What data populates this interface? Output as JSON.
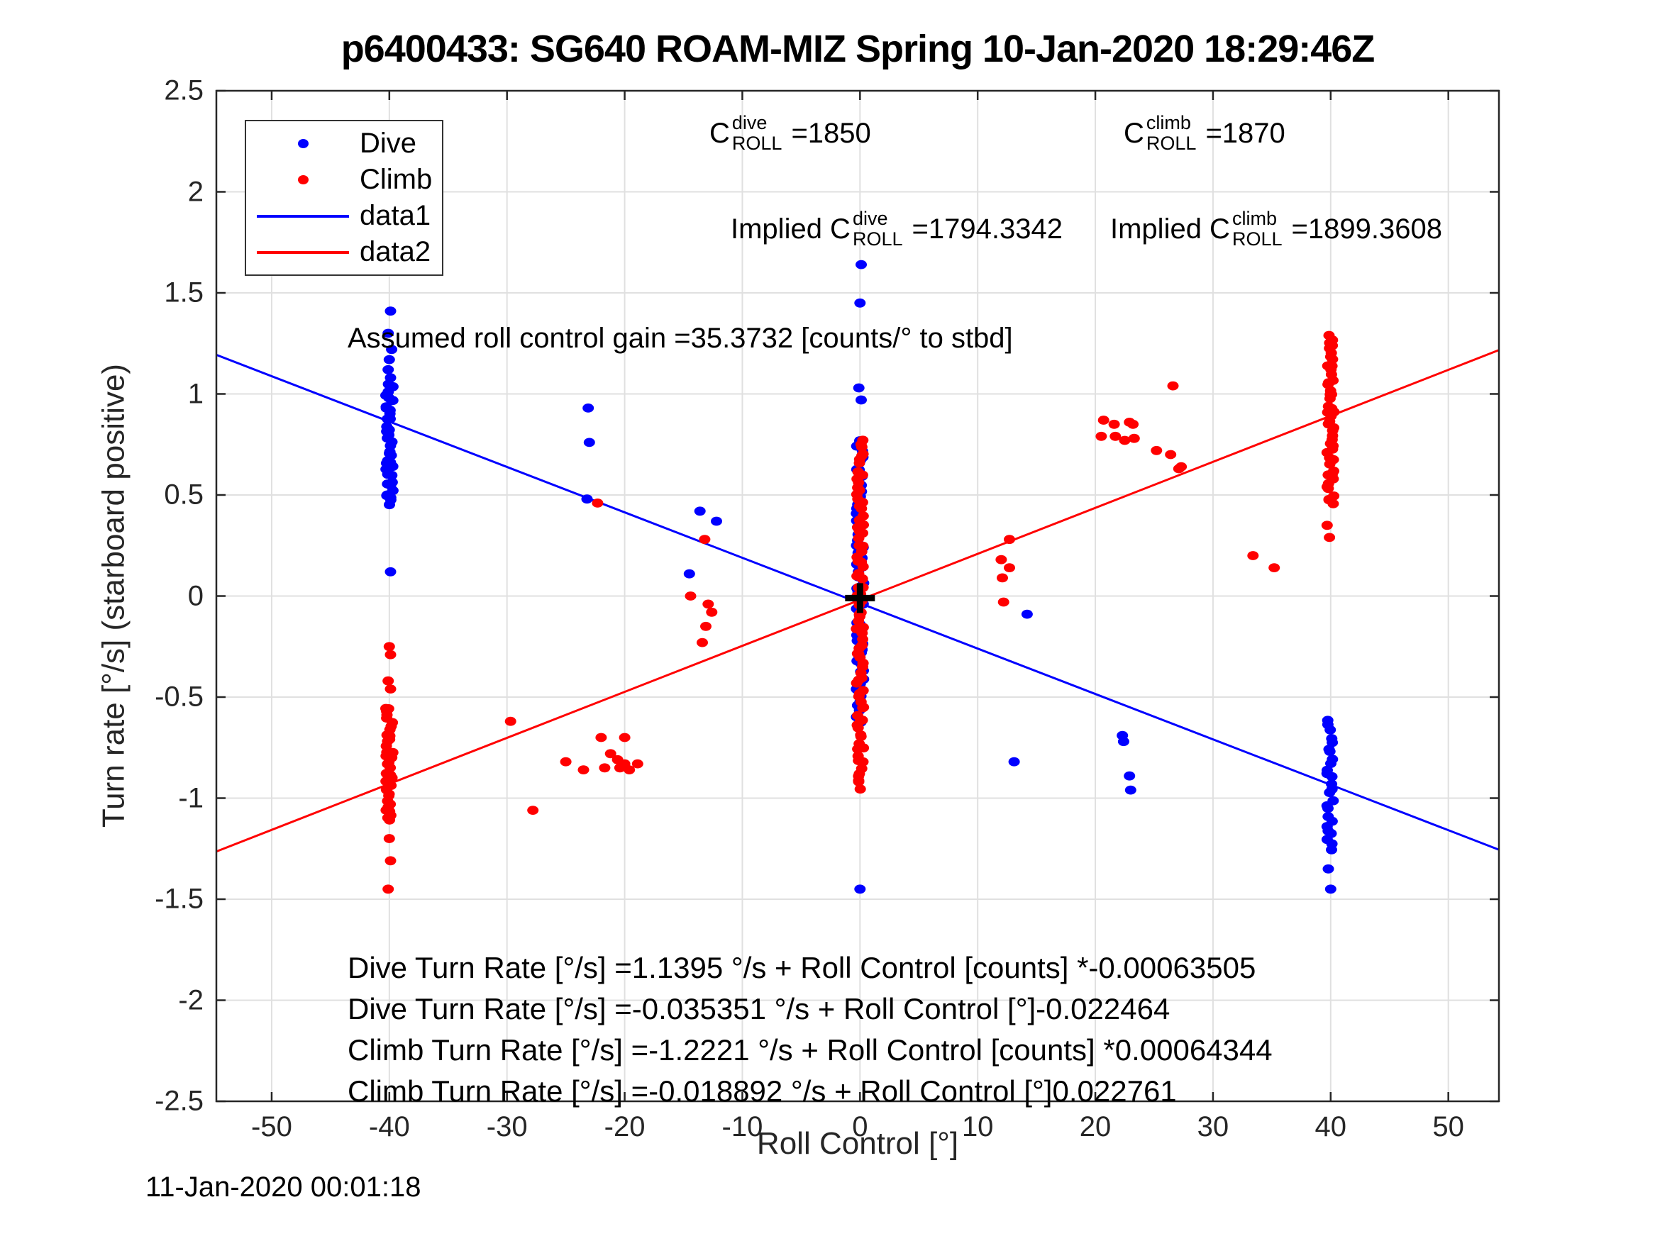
{
  "figure": {
    "title": "p6400433: SG640 ROAM-MIZ Spring 10-Jan-2020 18:29:46Z",
    "timestamp": "11-Jan-2020 00:01:18"
  },
  "annotations": {
    "c_dive": {
      "prefix": "C",
      "sup": "dive",
      "sub": "ROLL",
      "value": "=1850"
    },
    "c_climb": {
      "prefix": "C",
      "sup": "climb",
      "sub": "ROLL",
      "value": "=1870"
    },
    "implied_dive": {
      "prefix": "Implied C",
      "sup": "dive",
      "sub": "ROLL",
      "value": "=1794.3342"
    },
    "implied_climb": {
      "prefix": "Implied C",
      "sup": "climb",
      "sub": "ROLL",
      "value": "=1899.3608"
    },
    "gain": "Assumed roll control gain =35.3732 [counts/° to stbd]",
    "equations": [
      "Dive Turn Rate [°/s] =1.1395 °/s + Roll Control [counts] *-0.00063505",
      "Dive Turn Rate [°/s] =-0.035351 °/s + Roll Control [°]-0.022464",
      "Climb Turn Rate [°/s] =-1.2221 °/s + Roll Control [counts] *0.00064344",
      "Climb Turn Rate [°/s] =-0.018892 °/s + Roll Control [°]0.022761"
    ]
  },
  "chart_data": {
    "type": "scatter",
    "title": "p6400433: SG640 ROAM-MIZ Spring 10-Jan-2020 18:29:46Z",
    "xlabel": "Roll Control [°]",
    "ylabel": "Turn rate [°/s] (starboard positive)",
    "xlim": [
      -54.7,
      54.3
    ],
    "ylim": [
      -2.5,
      2.5
    ],
    "xticks": [
      -50,
      -40,
      -30,
      -20,
      -10,
      0,
      10,
      20,
      30,
      40,
      50
    ],
    "yticks": [
      2.5,
      2,
      1.5,
      1,
      0.5,
      0,
      -0.5,
      -1,
      -1.5,
      -2,
      -2.5
    ],
    "grid": true,
    "colors": {
      "dive": "#0000ff",
      "climb": "#ff0000",
      "axis": "#262626",
      "grid": "#e0e0e0",
      "origin_marker": "#000000"
    },
    "legend": {
      "position": "top-left",
      "entries": [
        {
          "label": "Dive",
          "type": "marker",
          "color": "#0000ff"
        },
        {
          "label": "Climb",
          "type": "marker",
          "color": "#ff0000"
        },
        {
          "label": "data1",
          "type": "line",
          "color": "#0000ff"
        },
        {
          "label": "data2",
          "type": "line",
          "color": "#ff0000"
        }
      ]
    },
    "series": [
      {
        "name": "Dive",
        "type": "scatter",
        "color": "#0000ff",
        "strips": [
          {
            "x": -40,
            "y_min": 0.45,
            "y_max": 1.05,
            "n": 40
          },
          {
            "x": 0,
            "y_min": -0.62,
            "y_max": 0.78,
            "n": 60
          },
          {
            "x": 40,
            "y_min": -1.26,
            "y_max": -0.62,
            "n": 26
          }
        ],
        "points": [
          [
            -39.9,
            1.41
          ],
          [
            -40.1,
            1.3
          ],
          [
            -39.8,
            1.22
          ],
          [
            -40.0,
            1.17
          ],
          [
            -40.1,
            1.12
          ],
          [
            -39.9,
            1.08
          ],
          [
            -39.9,
            0.12
          ],
          [
            -23.1,
            0.93
          ],
          [
            -23.0,
            0.76
          ],
          [
            -23.2,
            0.48
          ],
          [
            -14.5,
            0.11
          ],
          [
            -13.6,
            0.42
          ],
          [
            -12.2,
            0.37
          ],
          [
            0.1,
            1.64
          ],
          [
            0.0,
            1.45
          ],
          [
            -0.1,
            1.03
          ],
          [
            0.1,
            0.97
          ],
          [
            0.0,
            -1.45
          ],
          [
            13.1,
            -0.82
          ],
          [
            14.2,
            -0.09
          ],
          [
            22.3,
            -0.69
          ],
          [
            22.4,
            -0.72
          ],
          [
            22.9,
            -0.89
          ],
          [
            23.0,
            -0.96
          ],
          [
            39.8,
            -1.35
          ],
          [
            40.0,
            -1.45
          ]
        ]
      },
      {
        "name": "Climb",
        "type": "scatter",
        "color": "#ff0000",
        "strips": [
          {
            "x": -40,
            "y_min": -1.12,
            "y_max": -0.55,
            "n": 36
          },
          {
            "x": 0,
            "y_min": -0.95,
            "y_max": 0.77,
            "n": 85
          },
          {
            "x": 40,
            "y_min": 0.45,
            "y_max": 1.29,
            "n": 48
          }
        ],
        "points": [
          [
            -40.0,
            -0.25
          ],
          [
            -39.9,
            -0.29
          ],
          [
            -40.1,
            -0.42
          ],
          [
            -39.9,
            -0.46
          ],
          [
            -40.0,
            -1.2
          ],
          [
            -39.9,
            -1.31
          ],
          [
            -40.1,
            -1.45
          ],
          [
            -29.7,
            -0.62
          ],
          [
            -27.8,
            -1.06
          ],
          [
            -25.0,
            -0.82
          ],
          [
            -23.5,
            -0.86
          ],
          [
            -22.0,
            -0.7
          ],
          [
            -21.7,
            -0.85
          ],
          [
            -21.2,
            -0.78
          ],
          [
            -20.6,
            -0.81
          ],
          [
            -20.4,
            -0.85
          ],
          [
            -20.0,
            -0.7
          ],
          [
            -20.0,
            -0.83
          ],
          [
            -19.6,
            -0.86
          ],
          [
            -18.9,
            -0.83
          ],
          [
            -22.3,
            0.46
          ],
          [
            -13.2,
            0.28
          ],
          [
            -14.4,
            0.0
          ],
          [
            -12.9,
            -0.04
          ],
          [
            -12.6,
            -0.08
          ],
          [
            -13.1,
            -0.15
          ],
          [
            -13.4,
            -0.23
          ],
          [
            12.0,
            0.18
          ],
          [
            12.1,
            0.09
          ],
          [
            12.2,
            -0.03
          ],
          [
            12.7,
            0.28
          ],
          [
            12.7,
            0.14
          ],
          [
            20.5,
            0.79
          ],
          [
            20.7,
            0.87
          ],
          [
            21.6,
            0.85
          ],
          [
            21.7,
            0.79
          ],
          [
            22.5,
            0.77
          ],
          [
            22.9,
            0.86
          ],
          [
            23.2,
            0.85
          ],
          [
            23.3,
            0.78
          ],
          [
            25.2,
            0.72
          ],
          [
            26.4,
            0.7
          ],
          [
            26.6,
            1.04
          ],
          [
            27.1,
            0.63
          ],
          [
            27.3,
            0.64
          ],
          [
            33.4,
            0.2
          ],
          [
            35.2,
            0.14
          ],
          [
            39.7,
            0.35
          ],
          [
            39.9,
            0.29
          ]
        ]
      },
      {
        "name": "data1",
        "type": "line",
        "color": "#0000ff",
        "intercept": -0.035351,
        "slope": -0.022464
      },
      {
        "name": "data2",
        "type": "line",
        "color": "#ff0000",
        "intercept": -0.018892,
        "slope": 0.022761
      }
    ],
    "origin_marker": {
      "x": 0,
      "y": -0.01,
      "shape": "plus"
    }
  }
}
